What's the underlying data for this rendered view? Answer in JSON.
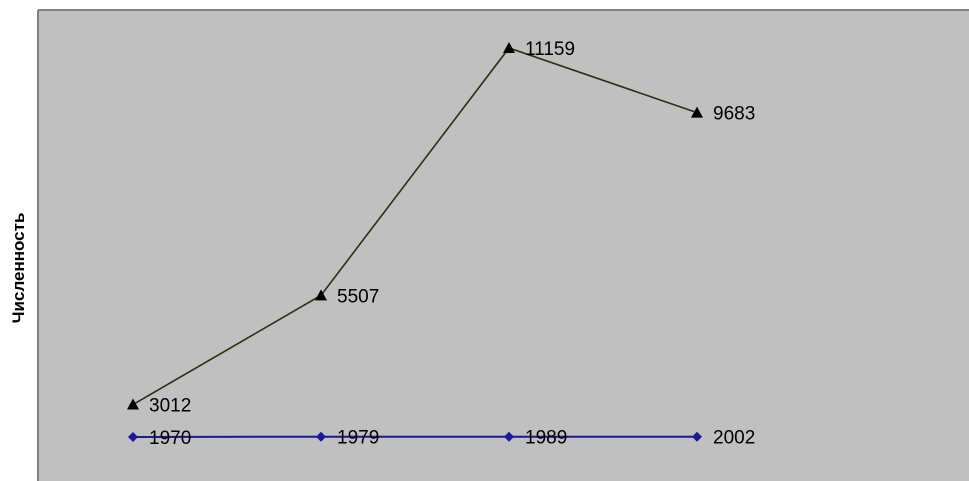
{
  "chart_data": {
    "type": "line",
    "title": "",
    "xlabel": "",
    "ylabel": "Численность",
    "categories": [
      "1970",
      "1979",
      "1989",
      "2002"
    ],
    "ylim": [
      2000,
      11700
    ],
    "grid": false,
    "legend": "none",
    "series": [
      {
        "values": [
          3012,
          5507,
          11159,
          9683
        ],
        "data_labels": [
          "3012",
          "5507",
          "11159",
          "9683"
        ],
        "marker": "triangle",
        "color": "#2e2e10",
        "marker_color": "#000000"
      },
      {
        "values": [
          2270,
          2277,
          2277,
          2277
        ],
        "data_labels": [
          "1970",
          "1979",
          "1989",
          "2002"
        ],
        "marker": "diamond",
        "color": "#1a1a8c",
        "marker_color": "#1a1a9a"
      }
    ]
  },
  "colors": {
    "plot_background": "#c0c0c0",
    "frame": "#808080"
  }
}
